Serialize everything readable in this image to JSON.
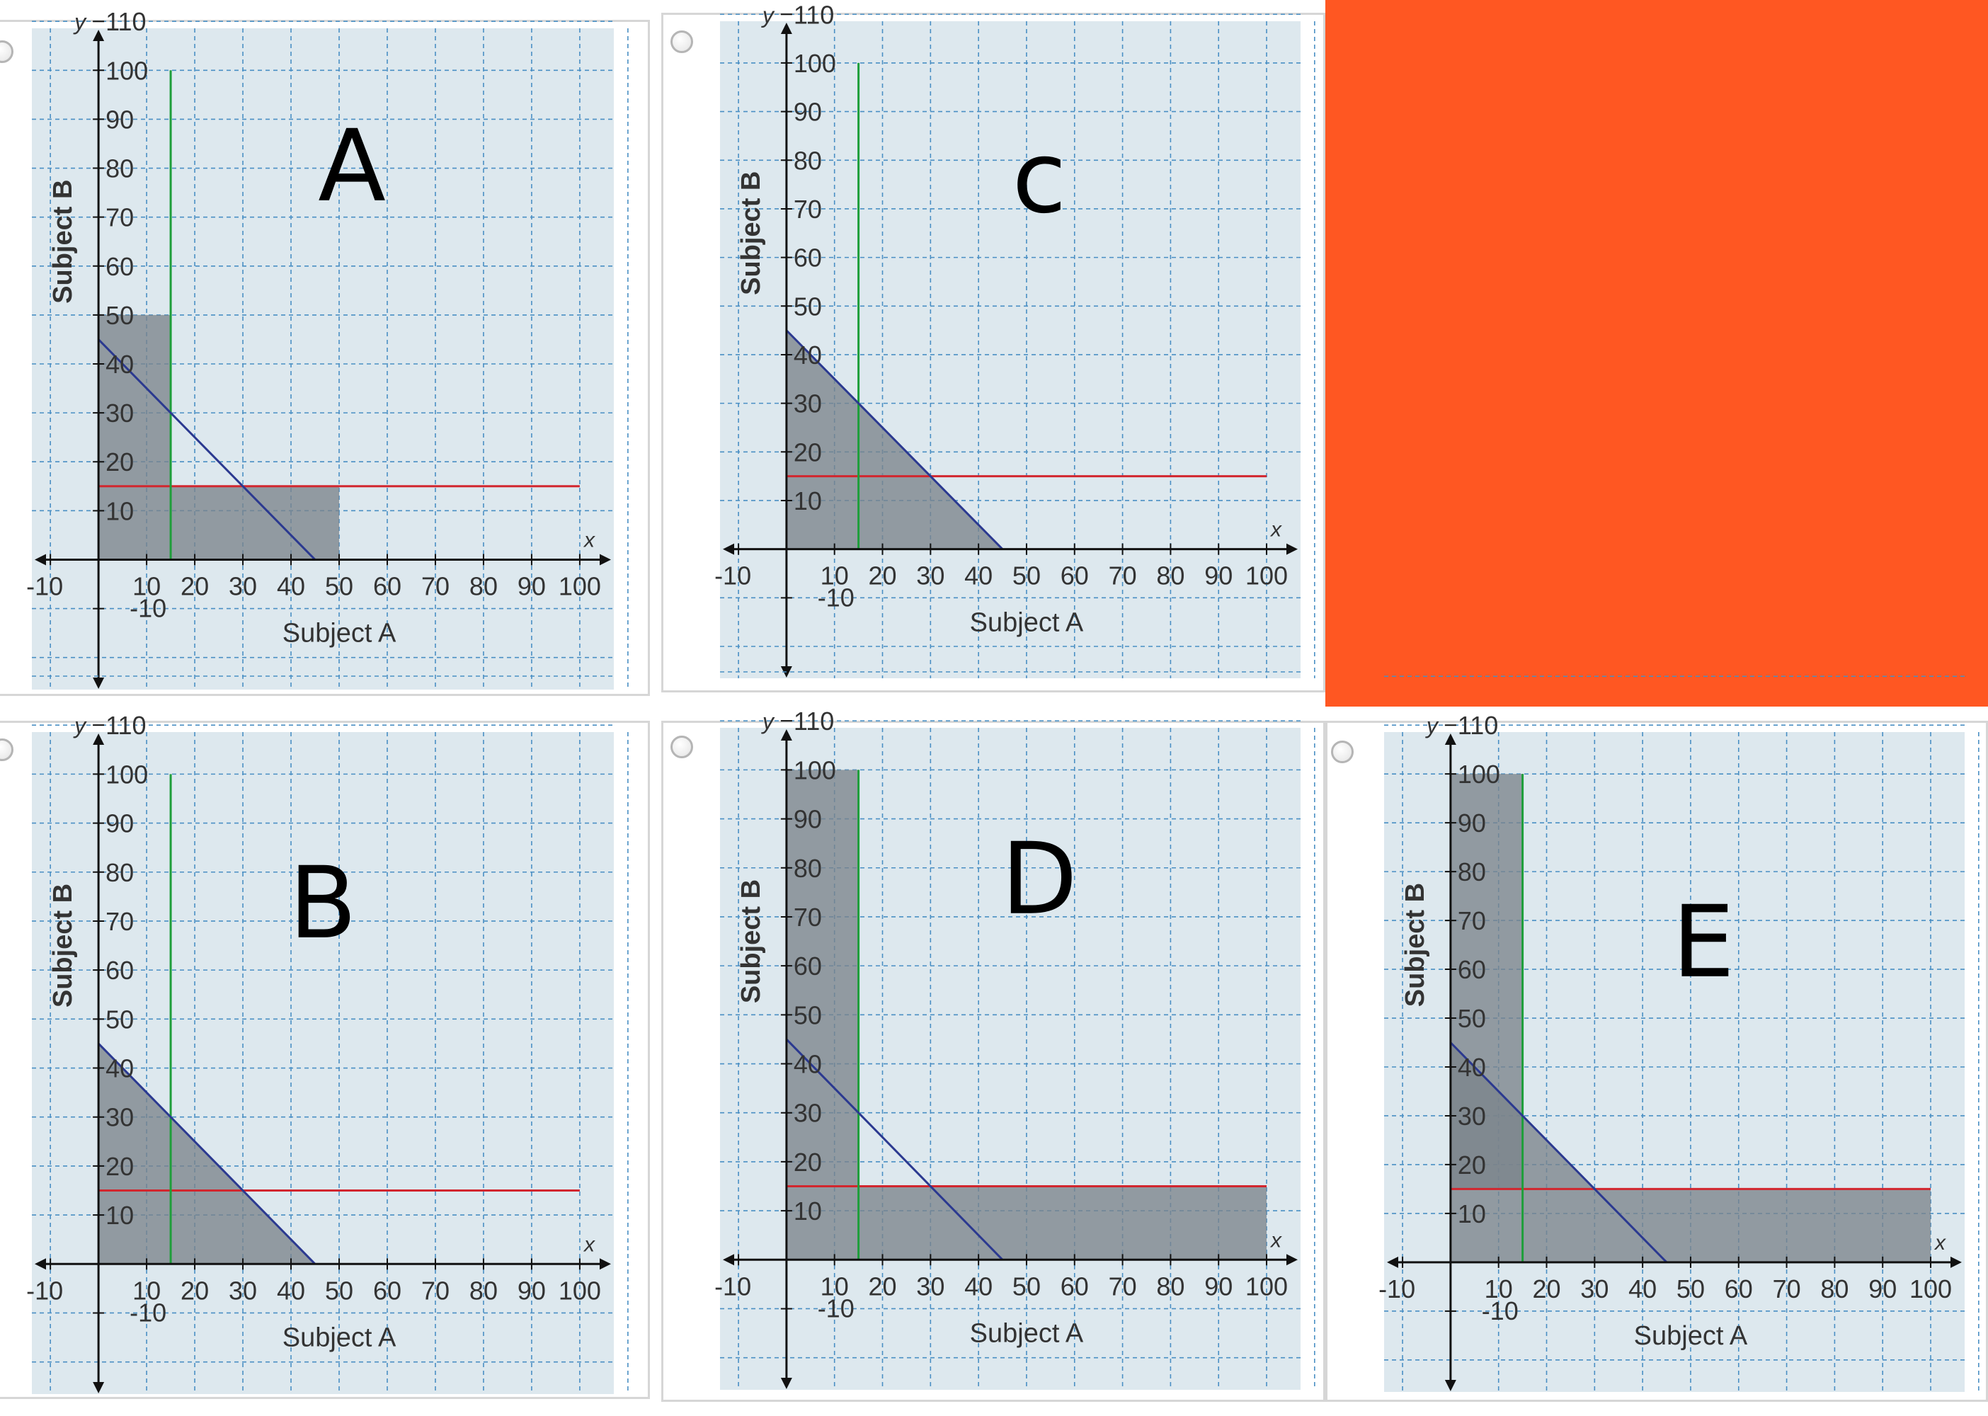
{
  "background_block": {
    "color": "#FF5722"
  },
  "style": {
    "panel_bg": "#DDE8EE",
    "grid_color": "#4A8FC4",
    "shade_color": "#7B848C",
    "red_line": "#D2262E",
    "green_line": "#1E9E3A",
    "blue_line": "#2B3990",
    "axis_color": "#111111"
  },
  "options": [
    {
      "letter": "A",
      "xlabel": "Subject A",
      "ylabel": "Subject B",
      "x_axis_symbol": "x",
      "y_axis_symbol": "y",
      "has_radio": true,
      "shaded_regions": [
        {
          "points": [
            [
              0,
              0
            ],
            [
              0,
              50
            ],
            [
              15,
              50
            ],
            [
              15,
              15
            ],
            [
              50,
              15
            ],
            [
              50,
              0
            ]
          ]
        }
      ]
    },
    {
      "letter": "c",
      "xlabel": "Subject A",
      "ylabel": "Subject B",
      "x_axis_symbol": "x",
      "y_axis_symbol": "y",
      "has_radio": true,
      "shaded_regions": [
        {
          "points": [
            [
              0,
              0
            ],
            [
              0,
              45
            ],
            [
              45,
              0
            ]
          ]
        }
      ]
    },
    {
      "letter": "B",
      "xlabel": "Subject A",
      "ylabel": "Subject B",
      "x_axis_symbol": "x",
      "y_axis_symbol": "y",
      "has_radio": true,
      "shaded_regions": [
        {
          "points": [
            [
              0,
              0
            ],
            [
              0,
              45
            ],
            [
              45,
              0
            ]
          ]
        }
      ]
    },
    {
      "letter": "D",
      "xlabel": "Subject A",
      "ylabel": "Subject B",
      "x_axis_symbol": "x",
      "y_axis_symbol": "y",
      "has_radio": true,
      "shaded_regions": [
        {
          "points": [
            [
              0,
              0
            ],
            [
              0,
              100
            ],
            [
              15,
              100
            ],
            [
              15,
              15
            ],
            [
              100,
              15
            ],
            [
              100,
              0
            ]
          ]
        }
      ]
    },
    {
      "letter": "E",
      "xlabel": "Subject A",
      "ylabel": "Subject B",
      "x_axis_symbol": "x",
      "y_axis_symbol": "y",
      "has_radio": true,
      "shaded_regions": [
        {
          "points": [
            [
              0,
              0
            ],
            [
              0,
              100
            ],
            [
              15,
              100
            ],
            [
              15,
              15
            ],
            [
              100,
              15
            ],
            [
              100,
              0
            ]
          ]
        },
        {
          "points": [
            [
              0,
              15
            ],
            [
              0,
              45
            ],
            [
              30,
              15
            ]
          ]
        }
      ]
    }
  ],
  "chart_data": [
    {
      "type": "line",
      "title": "A",
      "xlabel": "Subject A",
      "ylabel": "Subject B",
      "xlim": [
        -10,
        110
      ],
      "ylim": [
        -20,
        115
      ],
      "xticks": [
        -10,
        10,
        20,
        30,
        40,
        50,
        60,
        70,
        80,
        90,
        100
      ],
      "yticks": [
        -10,
        10,
        20,
        30,
        40,
        50,
        60,
        70,
        80,
        90,
        100,
        110
      ],
      "grid": true,
      "series": [
        {
          "color": "#D2262E",
          "x": [
            0,
            100
          ],
          "y": [
            15,
            15
          ]
        },
        {
          "color": "#1E9E3A",
          "x": [
            15,
            15
          ],
          "y": [
            0,
            100
          ]
        },
        {
          "color": "#2B3990",
          "x": [
            0,
            45
          ],
          "y": [
            45,
            0
          ]
        }
      ]
    },
    {
      "type": "line",
      "title": "c",
      "xlabel": "Subject A",
      "ylabel": "Subject B",
      "xlim": [
        -10,
        110
      ],
      "ylim": [
        -20,
        115
      ],
      "xticks": [
        -10,
        10,
        20,
        30,
        40,
        50,
        60,
        70,
        80,
        90,
        100
      ],
      "yticks": [
        -10,
        10,
        20,
        30,
        40,
        50,
        60,
        70,
        80,
        90,
        100,
        110
      ],
      "grid": true,
      "series": [
        {
          "color": "#D2262E",
          "x": [
            0,
            100
          ],
          "y": [
            15,
            15
          ]
        },
        {
          "color": "#1E9E3A",
          "x": [
            15,
            15
          ],
          "y": [
            0,
            100
          ]
        },
        {
          "color": "#2B3990",
          "x": [
            0,
            45
          ],
          "y": [
            45,
            0
          ]
        }
      ]
    },
    {
      "type": "line",
      "title": "B",
      "xlabel": "Subject A",
      "ylabel": "Subject B",
      "xlim": [
        -10,
        110
      ],
      "ylim": [
        -20,
        115
      ],
      "xticks": [
        -10,
        10,
        20,
        30,
        40,
        50,
        60,
        70,
        80,
        90,
        100
      ],
      "yticks": [
        -10,
        10,
        20,
        30,
        40,
        50,
        60,
        70,
        80,
        90,
        100,
        110
      ],
      "grid": true,
      "series": [
        {
          "color": "#D2262E",
          "x": [
            0,
            100
          ],
          "y": [
            15,
            15
          ]
        },
        {
          "color": "#1E9E3A",
          "x": [
            15,
            15
          ],
          "y": [
            0,
            100
          ]
        },
        {
          "color": "#2B3990",
          "x": [
            0,
            45
          ],
          "y": [
            45,
            0
          ]
        }
      ]
    },
    {
      "type": "line",
      "title": "D",
      "xlabel": "Subject A",
      "ylabel": "Subject B",
      "xlim": [
        -10,
        110
      ],
      "ylim": [
        -20,
        115
      ],
      "xticks": [
        -10,
        10,
        20,
        30,
        40,
        50,
        60,
        70,
        80,
        90,
        100
      ],
      "yticks": [
        -10,
        10,
        20,
        30,
        40,
        50,
        60,
        70,
        80,
        90,
        100,
        110
      ],
      "grid": true,
      "series": [
        {
          "color": "#D2262E",
          "x": [
            0,
            100
          ],
          "y": [
            15,
            15
          ]
        },
        {
          "color": "#1E9E3A",
          "x": [
            15,
            15
          ],
          "y": [
            0,
            100
          ]
        },
        {
          "color": "#2B3990",
          "x": [
            0,
            45
          ],
          "y": [
            45,
            0
          ]
        }
      ]
    },
    {
      "type": "line",
      "title": "E",
      "xlabel": "Subject A",
      "ylabel": "Subject B",
      "xlim": [
        -10,
        110
      ],
      "ylim": [
        -20,
        115
      ],
      "xticks": [
        -10,
        10,
        20,
        30,
        40,
        50,
        60,
        70,
        80,
        90,
        100
      ],
      "yticks": [
        -10,
        10,
        20,
        30,
        40,
        50,
        60,
        70,
        80,
        90,
        100,
        110
      ],
      "grid": true,
      "series": [
        {
          "color": "#D2262E",
          "x": [
            0,
            100
          ],
          "y": [
            15,
            15
          ]
        },
        {
          "color": "#1E9E3A",
          "x": [
            15,
            15
          ],
          "y": [
            0,
            100
          ]
        },
        {
          "color": "#2B3990",
          "x": [
            0,
            45
          ],
          "y": [
            45,
            0
          ]
        }
      ]
    }
  ]
}
